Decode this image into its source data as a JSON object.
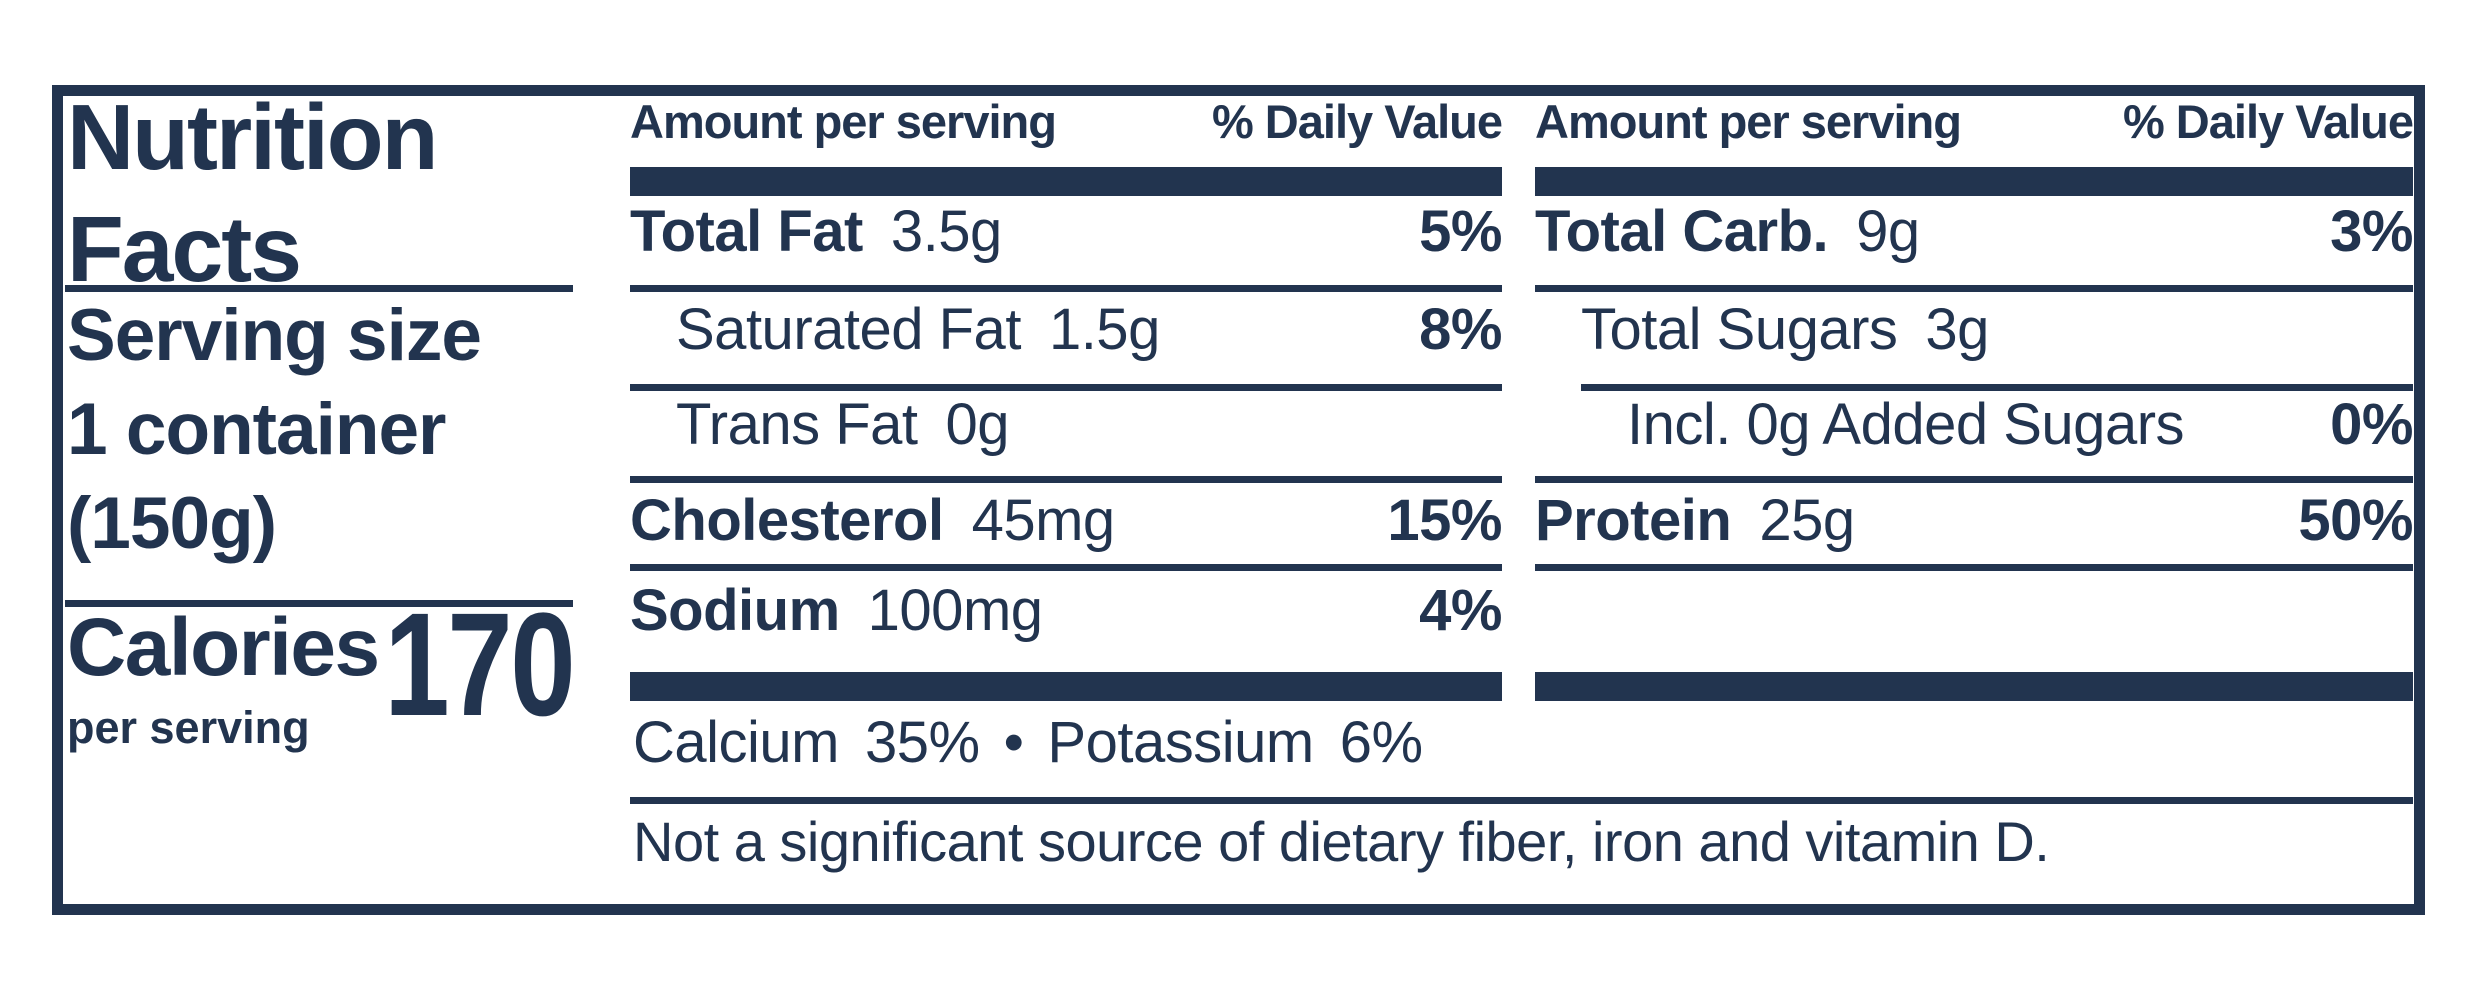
{
  "colors": {
    "ink": "#22344f",
    "paper": "#ffffff"
  },
  "title": {
    "line1": "Nutrition",
    "line2": "Facts"
  },
  "serving": {
    "line1": "Serving size",
    "line2": "1 container",
    "line3": "(150g)"
  },
  "calories": {
    "label": "Calories",
    "sublabel": "per serving",
    "value": "170"
  },
  "columns": [
    {
      "header": {
        "amount": "Amount per serving",
        "daily_value": "% Daily Value"
      },
      "rows": [
        {
          "name": "Total Fat",
          "amount": "3.5g",
          "daily_value": "5%"
        },
        {
          "name": "Saturated Fat",
          "amount": "1.5g",
          "daily_value": "8%"
        },
        {
          "name": "Trans Fat",
          "amount": "0g",
          "daily_value": ""
        },
        {
          "name": "Cholesterol",
          "amount": "45mg",
          "daily_value": "15%"
        },
        {
          "name": "Sodium",
          "amount": "100mg",
          "daily_value": "4%"
        }
      ],
      "minerals": {
        "name1": "Calcium",
        "value1": "35%",
        "separator": "•",
        "name2": "Potassium",
        "value2": "6%"
      }
    },
    {
      "header": {
        "amount": "Amount per serving",
        "daily_value": "% Daily Value"
      },
      "rows": [
        {
          "name": "Total Carb.",
          "amount": "9g",
          "daily_value": "3%"
        },
        {
          "name": "Total Sugars",
          "amount": "3g",
          "daily_value": ""
        },
        {
          "name": "Incl. 0g Added Sugars",
          "amount": "",
          "daily_value": "0%"
        },
        {
          "name": "Protein",
          "amount": "25g",
          "daily_value": "50%"
        }
      ]
    }
  ],
  "footnote": "Not a significant source of dietary fiber, iron and vitamin D."
}
